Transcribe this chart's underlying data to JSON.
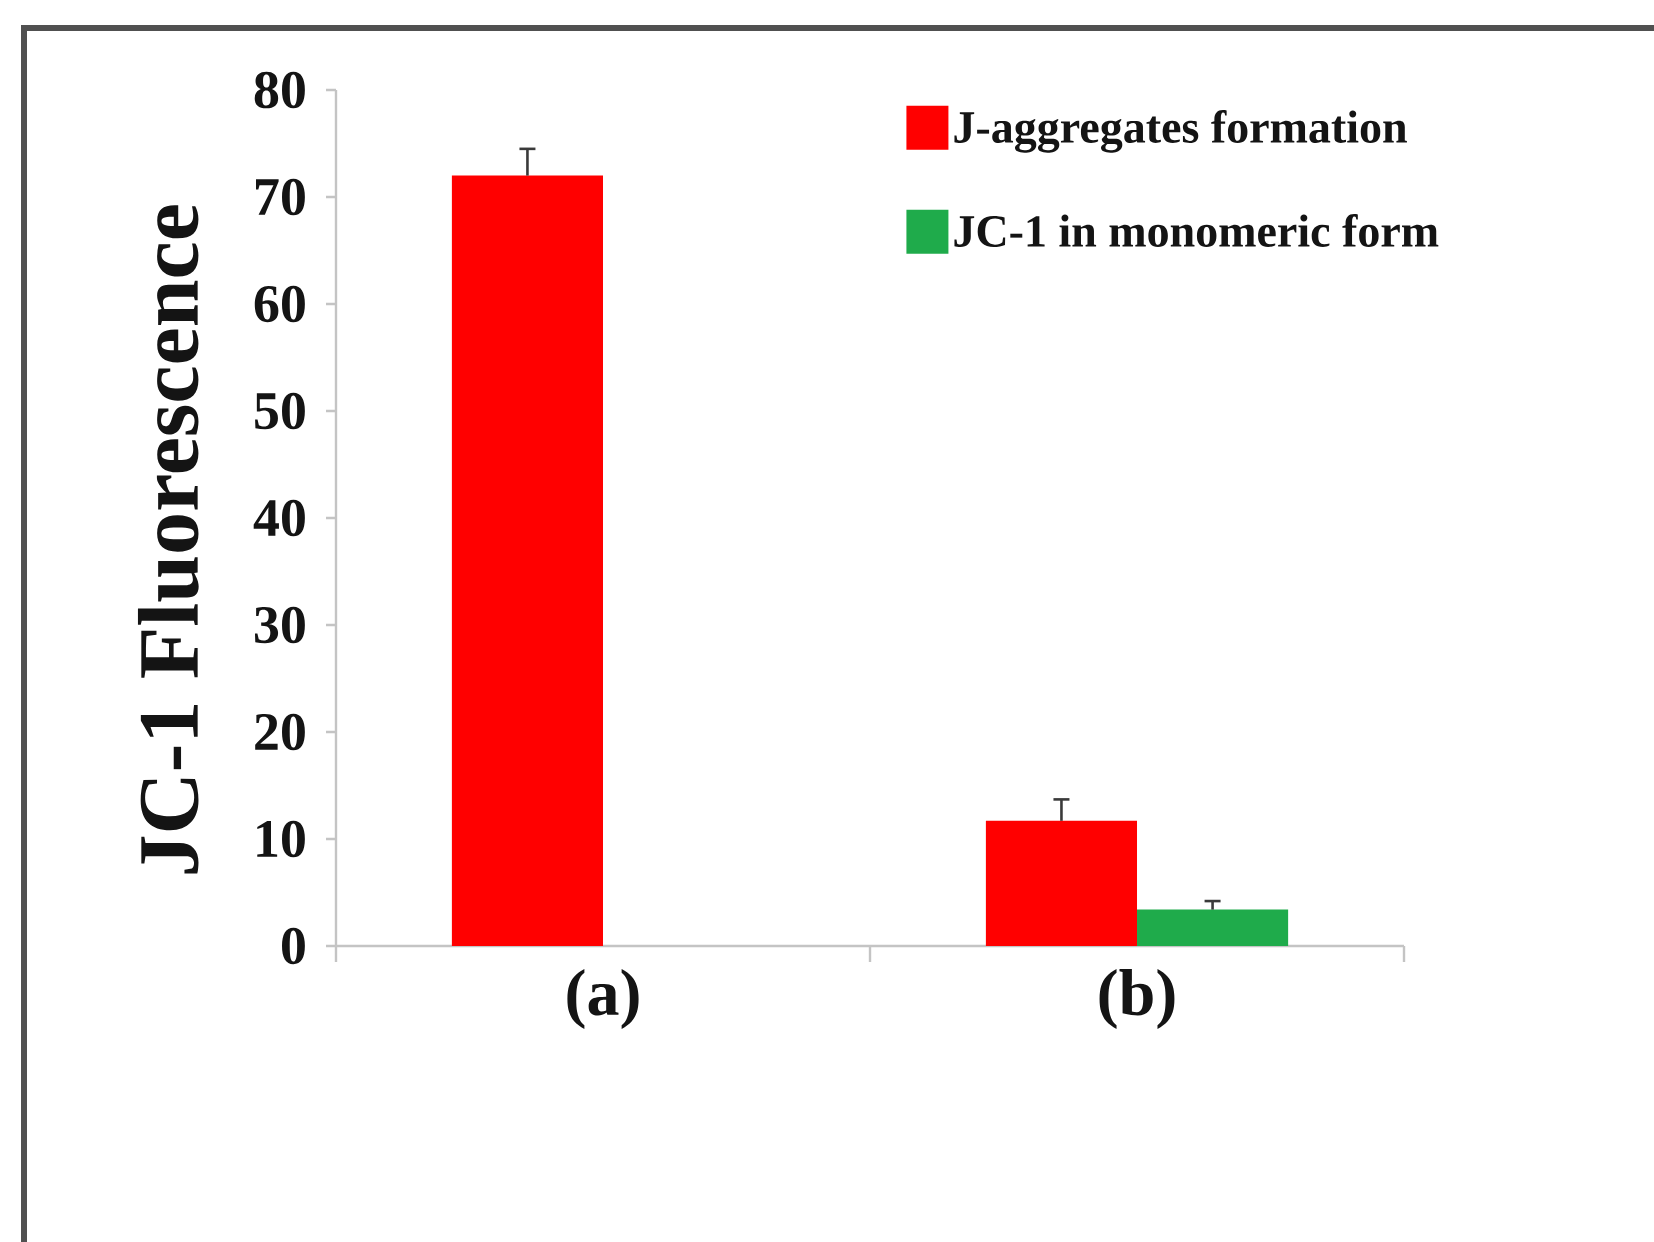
{
  "chart_data": {
    "type": "bar",
    "ylabel": "JC-1 Fluorescence",
    "categories": [
      "(a)",
      "(b)"
    ],
    "series": [
      {
        "name": "J-aggregates formation",
        "color": "#ff0000",
        "values": [
          72,
          11.7
        ],
        "errors": [
          [
            72,
            74.5
          ],
          [
            11.7,
            13.7
          ]
        ]
      },
      {
        "name": "JC-1 in monomeric form",
        "color": "#1fab4b",
        "values": [
          null,
          3.4
        ],
        "errors": [
          null,
          [
            3.4,
            4.2
          ]
        ]
      }
    ],
    "ylim": [
      0,
      80
    ],
    "yticks": [
      0,
      10,
      20,
      30,
      40,
      50,
      60,
      70,
      80
    ],
    "legend": "top right"
  }
}
